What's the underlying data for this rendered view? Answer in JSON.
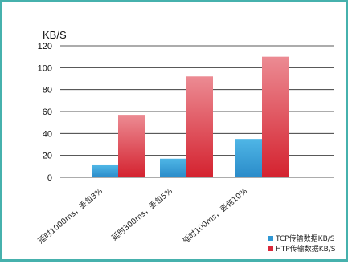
{
  "chart_data": {
    "type": "bar",
    "unit_label": "KB/S",
    "categories": [
      "延时1000ms，丢包3%",
      "延时300ms，丢包5%",
      "延时100ms，丢包10%"
    ],
    "series": [
      {
        "name": "TCP传输数据KB/S",
        "values": [
          11,
          17,
          35
        ],
        "color": "#2f97d3"
      },
      {
        "name": "HTP传输数据KB/S",
        "values": [
          57,
          92,
          110
        ],
        "color": "#d9283a"
      }
    ],
    "ylim": [
      0,
      120
    ],
    "yticks": [
      0,
      20,
      40,
      60,
      80,
      100,
      120
    ],
    "grid": true,
    "legend_position": "bottom-right"
  }
}
